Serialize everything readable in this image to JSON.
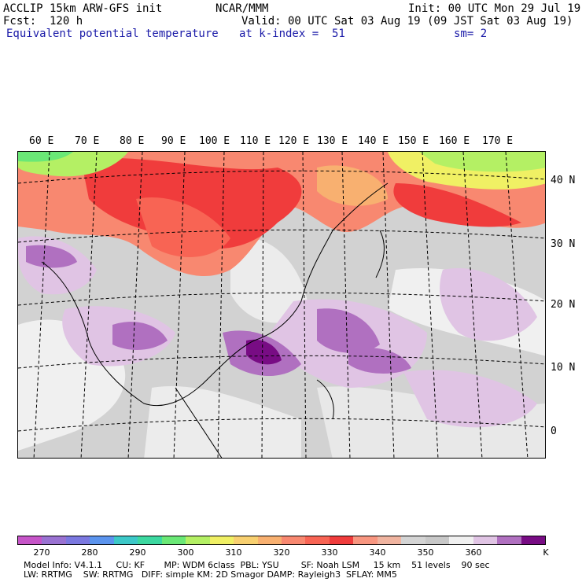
{
  "header": {
    "model_title": "ACCLIP 15km ARW-GFS init",
    "forecast": "Fcst:  120 h",
    "field_name": "Equivalent potential temperature",
    "center": "NCAR/MMM",
    "init": "Init: 00 UTC Mon 29 Jul 19",
    "valid": "Valid: 00 UTC Sat 03 Aug 19 (09 JST Sat 03 Aug 19)",
    "level": "at k-index =  51",
    "smoothing": "sm= 2"
  },
  "map": {
    "lon_labels": [
      "60 E",
      "70 E",
      "80 E",
      "90 E",
      "100 E",
      "110 E",
      "120 E",
      "130 E",
      "140 E",
      "150 E",
      "160 E",
      "170 E"
    ],
    "lat_labels": [
      "40 N",
      "30 N",
      "20 N",
      "10 N",
      "0"
    ]
  },
  "colorbar": {
    "unit": "K",
    "colors": [
      "#c655c8",
      "#9a72d2",
      "#7b78e0",
      "#5b94ee",
      "#3cc8c8",
      "#3cd8a0",
      "#6ae876",
      "#b4f064",
      "#f0f064",
      "#f8d070",
      "#f8b070",
      "#f88870",
      "#f86454",
      "#f03c3c",
      "#f89680",
      "#f0b4a0",
      "#d4d4d4",
      "#c8c8c8",
      "#f0f0f0",
      "#e0c4e4",
      "#b070c0",
      "#780c84"
    ],
    "tick_labels": [
      "270",
      "280",
      "290",
      "300",
      "310",
      "320",
      "330",
      "340",
      "350",
      "360"
    ]
  },
  "footer": {
    "line1": "Model Info: V4.1.1     CU: KF       MP: WDM 6class  PBL: YSU        SF: Noah LSM     15 km    51 levels    90 sec",
    "line2": "LW: RRTMG    SW: RRTMG   DIFF: simple KM: 2D Smagor DAMP: Rayleigh3  SFLAY: MM5"
  }
}
